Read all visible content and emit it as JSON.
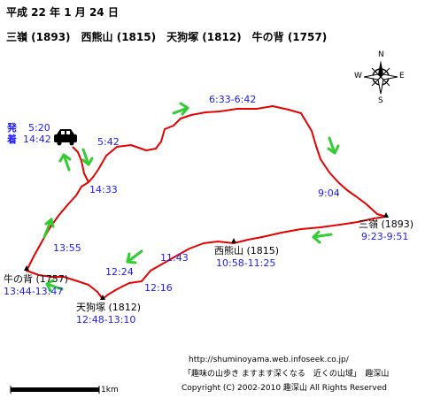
{
  "header": {
    "date": "平成 22 年 1 月 24 日",
    "peaks": "三嶺 (1893)　西熊山 (1815)　天狗塚 (1812)　牛の背 (1757)"
  },
  "compass": {
    "north": "N",
    "south": "S",
    "east": "E",
    "west": "W"
  },
  "start": {
    "depart_label": "発",
    "depart_time": "5:20",
    "arrive_label": "着",
    "arrive_time": "14:42"
  },
  "waypoints": {
    "t0542": "5:42",
    "t0633": "6:33-6:42",
    "t0904": "9:04",
    "t1433": "14:33",
    "t1355": "13:55",
    "t1143": "11:43",
    "t1224": "12:24",
    "t1216": "12:16"
  },
  "summits": {
    "sanrei": {
      "name": "三嶺 (1893)",
      "time": "9:23-9:51"
    },
    "nishikuma": {
      "name": "西熊山 (1815)",
      "time": "10:58-11:25"
    },
    "tenguzuka": {
      "name": "天狗塚 (1812)",
      "time": "12:48-13:10"
    },
    "ushinose": {
      "name": "牛の背 (1757)",
      "time": "13:44-13:47"
    }
  },
  "scale": {
    "label": "1km"
  },
  "footer": {
    "url": "http://shuminoyama.web.infoseek.co.jp/",
    "slogan": "「趣味の山歩き ますます深くなる　近くの山域」　趣深山",
    "copyright": "Copyright (C) 2002-2010 趣深山 All Rights Reserved"
  },
  "colors": {
    "route": "#e60000",
    "arrow": "#33cc33",
    "time_text": "#1a1aff",
    "label_text": "#000000"
  },
  "icons": [
    "car-icon",
    "compass-rose-icon",
    "summit-marker-icon",
    "direction-arrow-icon"
  ]
}
